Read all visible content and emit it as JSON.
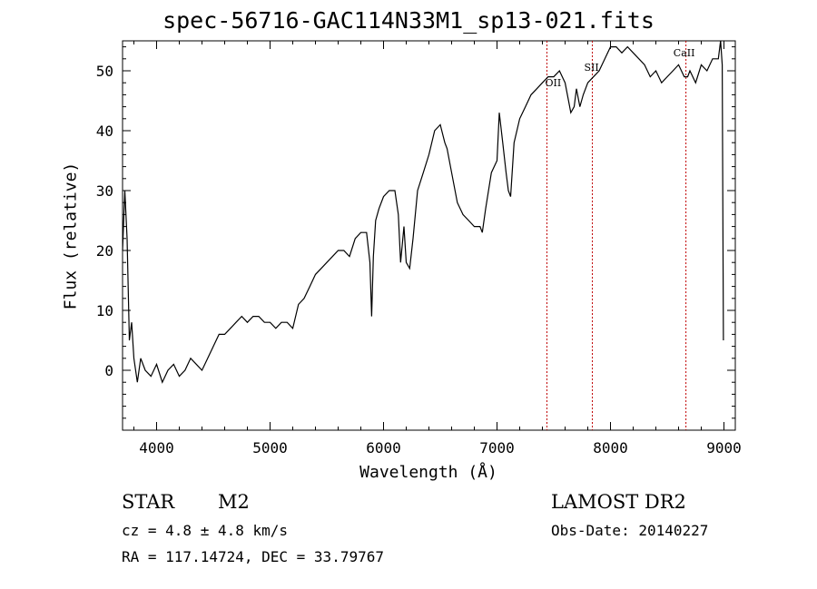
{
  "chart_data": {
    "type": "line",
    "title": "spec-56716-GAC114N33M1_sp13-021.fits",
    "xlabel": "Wavelength (Å)",
    "ylabel": "Flux (relative)",
    "xlim": [
      3700,
      9100
    ],
    "ylim": [
      -10,
      55
    ],
    "xticks": [
      4000,
      5000,
      6000,
      7000,
      8000,
      9000
    ],
    "yticks": [
      0,
      10,
      20,
      30,
      40,
      50
    ],
    "series": [
      {
        "x": [
          3700,
          3720,
          3740,
          3760,
          3780,
          3800,
          3830,
          3860,
          3900,
          3950,
          4000,
          4050,
          4100,
          4150,
          4200,
          4250,
          4300,
          4350,
          4400,
          4450,
          4500,
          4550,
          4600,
          4650,
          4700,
          4750,
          4800,
          4850,
          4900,
          4950,
          5000,
          5050,
          5100,
          5150,
          5200,
          5250,
          5300,
          5350,
          5400,
          5450,
          5500,
          5550,
          5600,
          5650,
          5700,
          5750,
          5800,
          5850,
          5880,
          5895,
          5910,
          5930,
          5960,
          6000,
          6050,
          6100,
          6130,
          6150,
          6180,
          6200,
          6230,
          6260,
          6300,
          6350,
          6400,
          6450,
          6500,
          6540,
          6560,
          6600,
          6650,
          6700,
          6750,
          6800,
          6850,
          6870,
          6900,
          6950,
          7000,
          7020,
          7050,
          7080,
          7100,
          7120,
          7150,
          7200,
          7250,
          7300,
          7350,
          7400,
          7450,
          7500,
          7550,
          7600,
          7630,
          7650,
          7680,
          7700,
          7730,
          7760,
          7800,
          7850,
          7900,
          7950,
          8000,
          8050,
          8100,
          8150,
          8200,
          8250,
          8300,
          8350,
          8400,
          8450,
          8500,
          8550,
          8600,
          8650,
          8680,
          8700,
          8750,
          8800,
          8850,
          8900,
          8950,
          8970,
          8985,
          8995
        ],
        "y": [
          20,
          30,
          22,
          5,
          8,
          2,
          -2,
          2,
          0,
          -1,
          1,
          -2,
          0,
          1,
          -1,
          0,
          2,
          1,
          0,
          2,
          4,
          6,
          6,
          7,
          8,
          9,
          8,
          9,
          9,
          8,
          8,
          7,
          8,
          8,
          7,
          11,
          12,
          14,
          16,
          17,
          18,
          19,
          20,
          20,
          19,
          22,
          23,
          23,
          18,
          9,
          19,
          25,
          27,
          29,
          30,
          30,
          26,
          18,
          24,
          18,
          17,
          22,
          30,
          33,
          36,
          40,
          41,
          38,
          37,
          33,
          28,
          26,
          25,
          24,
          24,
          23,
          27,
          33,
          35,
          43,
          38,
          33,
          30,
          29,
          38,
          42,
          44,
          46,
          47,
          48,
          49,
          49,
          50,
          48,
          45,
          43,
          44,
          47,
          44,
          46,
          48,
          49,
          50,
          52,
          54,
          54,
          53,
          54,
          53,
          52,
          51,
          49,
          50,
          48,
          49,
          50,
          51,
          49,
          49,
          50,
          48,
          51,
          50,
          52,
          52,
          55,
          51,
          5
        ]
      }
    ],
    "line_markers": [
      {
        "label": "OII",
        "x": 7440
      },
      {
        "label": "SII",
        "x": 7840
      },
      {
        "label": "CaII",
        "x": 8665
      }
    ],
    "annotations": {
      "object_class": "STAR",
      "subclass": "M2",
      "survey": "LAMOST DR2",
      "cz": "cz = 4.8 ± 4.8 km/s",
      "obs_date": "Obs-Date: 20140227",
      "coords": "RA = 117.14724, DEC =  33.79767"
    }
  }
}
